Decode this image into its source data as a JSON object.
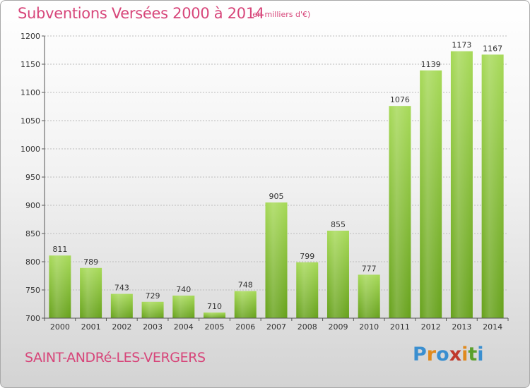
{
  "header": {
    "title": "Subventions Versées 2000 à 2014",
    "subtitle": "(en milliers d'€)"
  },
  "footer": {
    "place": "SAINT-ANDRé-LES-VERGERS",
    "logo_text": "Proxiti"
  },
  "colors": {
    "accent": "#d7467a",
    "bar_light": "#9ed04a",
    "bar_dark": "#6aa51f",
    "grid": "#bcbcbc"
  },
  "chart_data": {
    "type": "bar",
    "title": "Subventions Versées 2000 à 2014",
    "subtitle": "(en milliers d'€)",
    "xlabel": "",
    "ylabel": "",
    "categories": [
      "2000",
      "2001",
      "2002",
      "2003",
      "2004",
      "2005",
      "2006",
      "2007",
      "2008",
      "2009",
      "2010",
      "2011",
      "2012",
      "2013",
      "2014"
    ],
    "values": [
      811,
      789,
      743,
      729,
      740,
      710,
      748,
      905,
      799,
      855,
      777,
      1076,
      1139,
      1173,
      1167
    ],
    "ylim": [
      700,
      1200
    ],
    "yticks": [
      700,
      750,
      800,
      850,
      900,
      950,
      1000,
      1050,
      1100,
      1150,
      1200
    ],
    "grid": true,
    "legend": "none"
  }
}
